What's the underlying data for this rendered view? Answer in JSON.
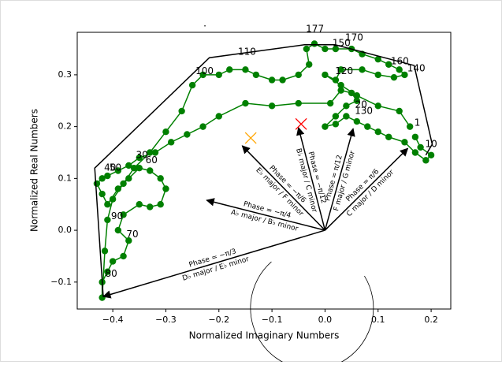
{
  "chart_data": {
    "type": "line",
    "title": ".",
    "xlabel": "Normalized Imaginary Numbers",
    "ylabel": "Normalized Real Numbers",
    "xlim": [
      -0.467,
      0.237
    ],
    "ylim": [
      -0.152,
      0.382
    ],
    "xticks": [
      {
        "value": -0.4,
        "label": "−0.4"
      },
      {
        "value": -0.3,
        "label": "−0.3"
      },
      {
        "value": -0.2,
        "label": "−0.2"
      },
      {
        "value": -0.1,
        "label": "−0.1"
      },
      {
        "value": 0,
        "label": "0.0"
      },
      0.1,
      0.2
    ],
    "yticks": [
      {
        "value": -0.1,
        "label": "−0.1"
      },
      {
        "value": 0,
        "label": "0.0"
      },
      0.1,
      0.2,
      0.3
    ],
    "series": [
      {
        "color": "#008000",
        "markers": true,
        "x": [
          0.17,
          0.18,
          0.2,
          0.19,
          0.17,
          0.15,
          0.12,
          0.1,
          0.08,
          0.06,
          0.04,
          0.02,
          0.0,
          0.02,
          0.04,
          0.06,
          0.05,
          0.03,
          0.01,
          -0.05,
          -0.1,
          -0.15,
          -0.2,
          -0.23,
          -0.26,
          -0.29,
          -0.32,
          -0.35,
          -0.37,
          -0.39,
          -0.41,
          -0.42,
          -0.43,
          -0.42,
          -0.41,
          -0.39,
          -0.37,
          -0.35,
          -0.33,
          -0.31,
          -0.3,
          -0.31,
          -0.33,
          -0.35,
          -0.38,
          -0.39,
          -0.37,
          -0.38,
          -0.4,
          -0.41,
          -0.42,
          -0.42,
          -0.415,
          -0.41,
          -0.4,
          -0.38,
          -0.36,
          -0.33,
          -0.3,
          -0.27,
          -0.25,
          -0.23,
          -0.2,
          -0.18,
          -0.15,
          -0.13,
          -0.1,
          -0.08,
          -0.05,
          -0.03,
          -0.035,
          -0.02,
          0.0,
          0.02,
          0.05,
          0.07,
          0.1,
          0.12,
          0.14,
          0.15,
          0.13,
          0.1,
          0.07,
          0.03,
          0.02,
          0.0,
          0.03,
          0.06,
          0.1,
          0.14,
          0.16
        ],
        "y": [
          0.18,
          0.16,
          0.145,
          0.135,
          0.15,
          0.17,
          0.18,
          0.19,
          0.2,
          0.21,
          0.22,
          0.205,
          0.2,
          0.22,
          0.24,
          0.25,
          0.265,
          0.27,
          0.245,
          0.245,
          0.24,
          0.245,
          0.22,
          0.2,
          0.185,
          0.17,
          0.15,
          0.14,
          0.125,
          0.115,
          0.105,
          0.1,
          0.09,
          0.07,
          0.05,
          0.08,
          0.1,
          0.12,
          0.115,
          0.1,
          0.08,
          0.05,
          0.045,
          0.05,
          0.03,
          0.0,
          -0.02,
          -0.05,
          -0.06,
          -0.08,
          -0.1,
          -0.13,
          -0.04,
          0.02,
          0.06,
          0.09,
          0.12,
          0.15,
          0.19,
          0.23,
          0.28,
          0.3,
          0.3,
          0.31,
          0.31,
          0.3,
          0.29,
          0.29,
          0.3,
          0.32,
          0.35,
          0.36,
          0.35,
          0.35,
          0.35,
          0.34,
          0.33,
          0.32,
          0.31,
          0.3,
          0.295,
          0.3,
          0.31,
          0.31,
          0.29,
          0.3,
          0.28,
          0.26,
          0.24,
          0.23,
          0.2
        ]
      },
      {
        "color": "#000000",
        "markers": false,
        "x": [
          -0.418,
          -0.434,
          -0.218,
          -0.039,
          0.019,
          0.168,
          0.202,
          0.19
        ],
        "y": [
          -0.128,
          0.12,
          0.333,
          0.358,
          0.358,
          0.318,
          0.166,
          0.145
        ]
      }
    ],
    "point_labels": [
      {
        "text": "177",
        "x": -0.019,
        "y": 0.388
      },
      {
        "text": "170",
        "x": 0.055,
        "y": 0.371
      },
      {
        "text": "150",
        "x": 0.031,
        "y": 0.361
      },
      {
        "text": "110",
        "x": -0.147,
        "y": 0.344
      },
      {
        "text": "100",
        "x": -0.227,
        "y": 0.307
      },
      {
        "text": "160",
        "x": 0.141,
        "y": 0.326
      },
      {
        "text": "140",
        "x": 0.172,
        "y": 0.312
      },
      {
        "text": "120",
        "x": 0.036,
        "y": 0.307
      },
      {
        "text": "20",
        "x": 0.068,
        "y": 0.242
      },
      {
        "text": "130",
        "x": 0.073,
        "y": 0.23
      },
      {
        "text": "1",
        "x": 0.174,
        "y": 0.207
      },
      {
        "text": "10",
        "x": 0.2,
        "y": 0.166
      },
      {
        "text": "30",
        "x": -0.345,
        "y": 0.145
      },
      {
        "text": "40",
        "x": -0.405,
        "y": 0.12
      },
      {
        "text": "50",
        "x": -0.395,
        "y": 0.12
      },
      {
        "text": "60",
        "x": -0.327,
        "y": 0.135
      },
      {
        "text": "90",
        "x": -0.392,
        "y": 0.027
      },
      {
        "text": "70",
        "x": -0.363,
        "y": -0.008
      },
      {
        "text": "80",
        "x": -0.403,
        "y": -0.084
      }
    ],
    "arrows": [
      {
        "x": 0.053,
        "y": 0.196,
        "phase": "Phase = π/12",
        "key": "F major / G minor"
      },
      {
        "x": -0.05,
        "y": 0.198,
        "phase": "Phase = −π/12",
        "key": "B♭ major / C minor"
      },
      {
        "x": -0.156,
        "y": 0.163,
        "phase": "Phase = −π/6",
        "key": "E♭ major / F minor"
      },
      {
        "x": -0.223,
        "y": 0.058,
        "phase": "Phase = −π/4",
        "key": "A♭ major / B♭ minor"
      },
      {
        "x": -0.418,
        "y": -0.128,
        "phase": "Phase = −π/3",
        "key": "D♭ major / E♭ minor"
      },
      {
        "x": 0.156,
        "y": 0.158,
        "phase": "Phase = π/6",
        "key": "C major / D minor"
      }
    ],
    "x_markers": [
      {
        "x": -0.045,
        "y": 0.205,
        "color": "#ff0000"
      },
      {
        "x": -0.14,
        "y": 0.178,
        "color": "#ffa500"
      }
    ]
  }
}
